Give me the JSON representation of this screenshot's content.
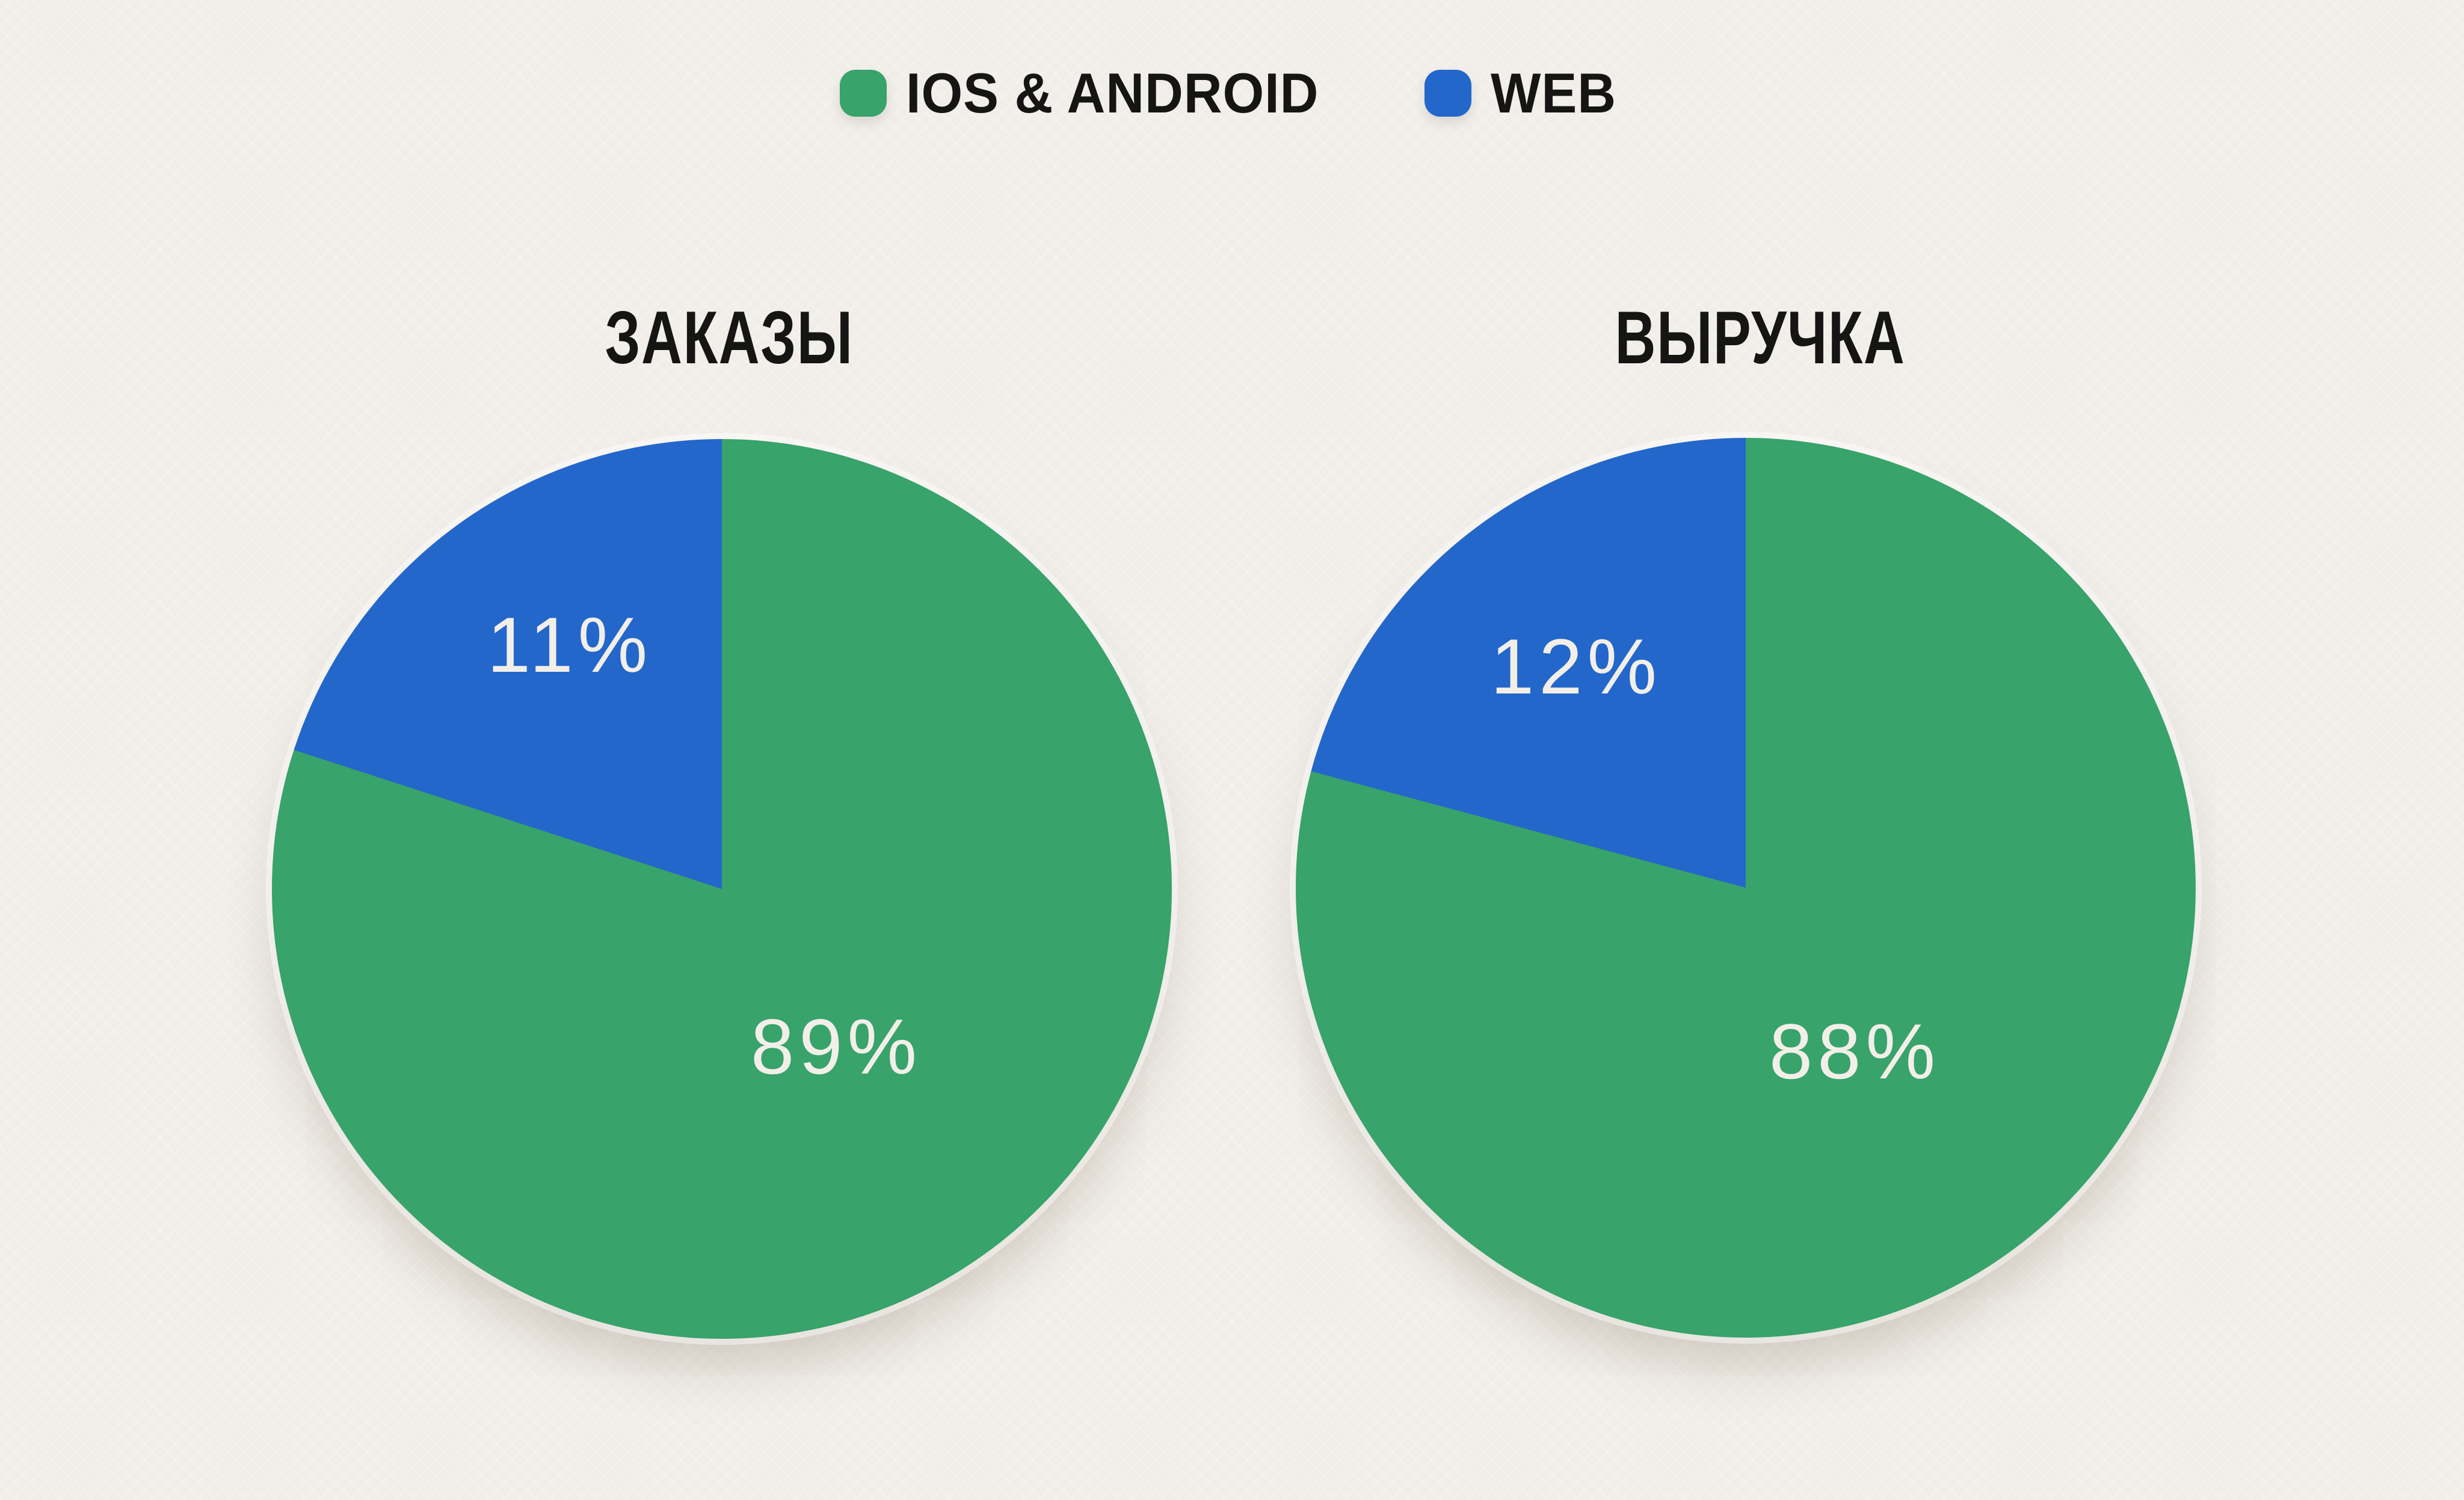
{
  "background_color": "#f1eee9",
  "text_color": "#151513",
  "slice_label_color": "#f2efe9",
  "legend": {
    "items": [
      {
        "label": "IOS & ANDROID",
        "color": "#38a36a"
      },
      {
        "label": "WEB",
        "color": "#2367cb"
      }
    ]
  },
  "chart_data": [
    {
      "type": "pie",
      "title": "ЗАКАЗЫ",
      "categories": [
        "IOS & ANDROID",
        "WEB"
      ],
      "values": [
        89,
        11
      ],
      "unit": "%",
      "slice_labels": {
        "app": "89%",
        "web": "11%"
      },
      "colors": {
        "app": "#38a36a",
        "web": "#2367cb"
      },
      "layout": {
        "legend_position": "top",
        "start_angle_deg": 0,
        "web_slice_drawn_start_deg": 288
      }
    },
    {
      "type": "pie",
      "title": "ВЫРУЧКА",
      "categories": [
        "IOS & ANDROID",
        "WEB"
      ],
      "values": [
        88,
        12
      ],
      "unit": "%",
      "slice_labels": {
        "app": "88%",
        "web": "12%"
      },
      "colors": {
        "app": "#38a36a",
        "web": "#2367cb"
      },
      "layout": {
        "legend_position": "top",
        "start_angle_deg": 0,
        "web_slice_drawn_start_deg": 285
      }
    }
  ]
}
